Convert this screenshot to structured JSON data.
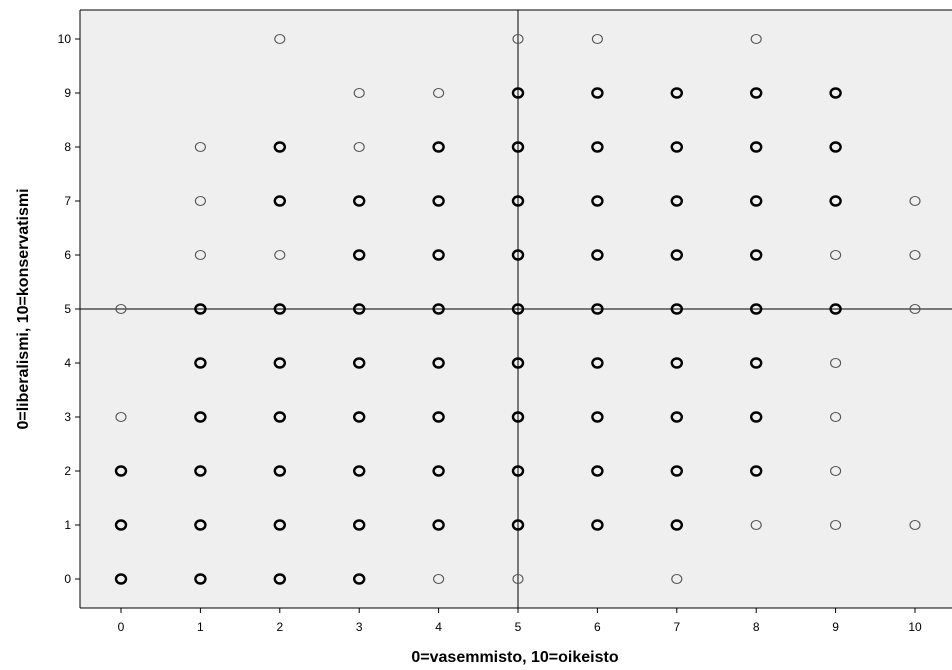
{
  "chart_data": {
    "type": "scatter",
    "title": "",
    "xlabel": "0=vasemmisto, 10=oikeisto",
    "ylabel": "0=liberalismi, 10=konservatismi",
    "xlim": [
      -0.6,
      10.4
    ],
    "ylim": [
      -0.5,
      10.5
    ],
    "x_ticks": [
      0,
      1,
      2,
      3,
      4,
      5,
      6,
      7,
      8,
      9,
      10
    ],
    "y_ticks": [
      0,
      1,
      2,
      3,
      4,
      5,
      6,
      7,
      8,
      9,
      10
    ],
    "x_tick_labels": [
      "0",
      "1",
      "2",
      "3",
      "4",
      "5",
      "6",
      "7",
      "8",
      "9",
      "10"
    ],
    "y_tick_labels": [
      "0",
      "1",
      "2",
      "3",
      "4",
      "5",
      "6",
      "7",
      "8",
      "9",
      "10"
    ],
    "reference_lines": {
      "x": 5,
      "y": 5
    },
    "grid": false,
    "legend": "none",
    "plot_background": "#efefef",
    "marker_color": "#000000",
    "series": [
      {
        "points": [
          {
            "x": 0,
            "y": 0,
            "weight": "heavy"
          },
          {
            "x": 0,
            "y": 1,
            "weight": "heavy"
          },
          {
            "x": 0,
            "y": 2,
            "weight": "heavy"
          },
          {
            "x": 0,
            "y": 3,
            "weight": "light"
          },
          {
            "x": 0,
            "y": 5,
            "weight": "light"
          },
          {
            "x": 1,
            "y": 0,
            "weight": "heavy"
          },
          {
            "x": 1,
            "y": 1,
            "weight": "heavy"
          },
          {
            "x": 1,
            "y": 2,
            "weight": "heavy"
          },
          {
            "x": 1,
            "y": 3,
            "weight": "heavy"
          },
          {
            "x": 1,
            "y": 4,
            "weight": "heavy"
          },
          {
            "x": 1,
            "y": 5,
            "weight": "heavy"
          },
          {
            "x": 1,
            "y": 6,
            "weight": "light"
          },
          {
            "x": 1,
            "y": 7,
            "weight": "light"
          },
          {
            "x": 1,
            "y": 8,
            "weight": "light"
          },
          {
            "x": 2,
            "y": 0,
            "weight": "heavy"
          },
          {
            "x": 2,
            "y": 1,
            "weight": "heavy"
          },
          {
            "x": 2,
            "y": 2,
            "weight": "heavy"
          },
          {
            "x": 2,
            "y": 3,
            "weight": "heavy"
          },
          {
            "x": 2,
            "y": 4,
            "weight": "heavy"
          },
          {
            "x": 2,
            "y": 5,
            "weight": "heavy"
          },
          {
            "x": 2,
            "y": 6,
            "weight": "light"
          },
          {
            "x": 2,
            "y": 7,
            "weight": "heavy"
          },
          {
            "x": 2,
            "y": 8,
            "weight": "heavy"
          },
          {
            "x": 2,
            "y": 10,
            "weight": "light"
          },
          {
            "x": 3,
            "y": 0,
            "weight": "heavy"
          },
          {
            "x": 3,
            "y": 1,
            "weight": "heavy"
          },
          {
            "x": 3,
            "y": 2,
            "weight": "heavy"
          },
          {
            "x": 3,
            "y": 3,
            "weight": "heavy"
          },
          {
            "x": 3,
            "y": 4,
            "weight": "heavy"
          },
          {
            "x": 3,
            "y": 5,
            "weight": "heavy"
          },
          {
            "x": 3,
            "y": 6,
            "weight": "heavy"
          },
          {
            "x": 3,
            "y": 7,
            "weight": "heavy"
          },
          {
            "x": 3,
            "y": 8,
            "weight": "light"
          },
          {
            "x": 3,
            "y": 9,
            "weight": "light"
          },
          {
            "x": 4,
            "y": 0,
            "weight": "light"
          },
          {
            "x": 4,
            "y": 1,
            "weight": "heavy"
          },
          {
            "x": 4,
            "y": 2,
            "weight": "heavy"
          },
          {
            "x": 4,
            "y": 3,
            "weight": "heavy"
          },
          {
            "x": 4,
            "y": 4,
            "weight": "heavy"
          },
          {
            "x": 4,
            "y": 5,
            "weight": "heavy"
          },
          {
            "x": 4,
            "y": 6,
            "weight": "heavy"
          },
          {
            "x": 4,
            "y": 7,
            "weight": "heavy"
          },
          {
            "x": 4,
            "y": 8,
            "weight": "heavy"
          },
          {
            "x": 4,
            "y": 9,
            "weight": "light"
          },
          {
            "x": 5,
            "y": 0,
            "weight": "light"
          },
          {
            "x": 5,
            "y": 1,
            "weight": "heavy"
          },
          {
            "x": 5,
            "y": 2,
            "weight": "heavy"
          },
          {
            "x": 5,
            "y": 3,
            "weight": "heavy"
          },
          {
            "x": 5,
            "y": 4,
            "weight": "heavy"
          },
          {
            "x": 5,
            "y": 5,
            "weight": "heavy"
          },
          {
            "x": 5,
            "y": 6,
            "weight": "heavy"
          },
          {
            "x": 5,
            "y": 7,
            "weight": "heavy"
          },
          {
            "x": 5,
            "y": 8,
            "weight": "heavy"
          },
          {
            "x": 5,
            "y": 9,
            "weight": "heavy"
          },
          {
            "x": 5,
            "y": 10,
            "weight": "light"
          },
          {
            "x": 6,
            "y": 1,
            "weight": "heavy"
          },
          {
            "x": 6,
            "y": 2,
            "weight": "heavy"
          },
          {
            "x": 6,
            "y": 3,
            "weight": "heavy"
          },
          {
            "x": 6,
            "y": 4,
            "weight": "heavy"
          },
          {
            "x": 6,
            "y": 5,
            "weight": "heavy"
          },
          {
            "x": 6,
            "y": 6,
            "weight": "heavy"
          },
          {
            "x": 6,
            "y": 7,
            "weight": "heavy"
          },
          {
            "x": 6,
            "y": 8,
            "weight": "heavy"
          },
          {
            "x": 6,
            "y": 9,
            "weight": "heavy"
          },
          {
            "x": 6,
            "y": 10,
            "weight": "light"
          },
          {
            "x": 7,
            "y": 0,
            "weight": "light"
          },
          {
            "x": 7,
            "y": 1,
            "weight": "heavy"
          },
          {
            "x": 7,
            "y": 2,
            "weight": "heavy"
          },
          {
            "x": 7,
            "y": 3,
            "weight": "heavy"
          },
          {
            "x": 7,
            "y": 4,
            "weight": "heavy"
          },
          {
            "x": 7,
            "y": 5,
            "weight": "heavy"
          },
          {
            "x": 7,
            "y": 6,
            "weight": "heavy"
          },
          {
            "x": 7,
            "y": 7,
            "weight": "heavy"
          },
          {
            "x": 7,
            "y": 8,
            "weight": "heavy"
          },
          {
            "x": 7,
            "y": 9,
            "weight": "heavy"
          },
          {
            "x": 8,
            "y": 1,
            "weight": "light"
          },
          {
            "x": 8,
            "y": 2,
            "weight": "heavy"
          },
          {
            "x": 8,
            "y": 3,
            "weight": "heavy"
          },
          {
            "x": 8,
            "y": 4,
            "weight": "heavy"
          },
          {
            "x": 8,
            "y": 5,
            "weight": "heavy"
          },
          {
            "x": 8,
            "y": 6,
            "weight": "heavy"
          },
          {
            "x": 8,
            "y": 7,
            "weight": "heavy"
          },
          {
            "x": 8,
            "y": 8,
            "weight": "heavy"
          },
          {
            "x": 8,
            "y": 9,
            "weight": "heavy"
          },
          {
            "x": 8,
            "y": 10,
            "weight": "light"
          },
          {
            "x": 9,
            "y": 1,
            "weight": "light"
          },
          {
            "x": 9,
            "y": 2,
            "weight": "light"
          },
          {
            "x": 9,
            "y": 3,
            "weight": "light"
          },
          {
            "x": 9,
            "y": 4,
            "weight": "light"
          },
          {
            "x": 9,
            "y": 5,
            "weight": "heavy"
          },
          {
            "x": 9,
            "y": 6,
            "weight": "light"
          },
          {
            "x": 9,
            "y": 7,
            "weight": "heavy"
          },
          {
            "x": 9,
            "y": 8,
            "weight": "heavy"
          },
          {
            "x": 9,
            "y": 9,
            "weight": "heavy"
          },
          {
            "x": 10,
            "y": 1,
            "weight": "light"
          },
          {
            "x": 10,
            "y": 5,
            "weight": "light"
          },
          {
            "x": 10,
            "y": 6,
            "weight": "light"
          },
          {
            "x": 10,
            "y": 7,
            "weight": "light"
          }
        ]
      }
    ]
  }
}
